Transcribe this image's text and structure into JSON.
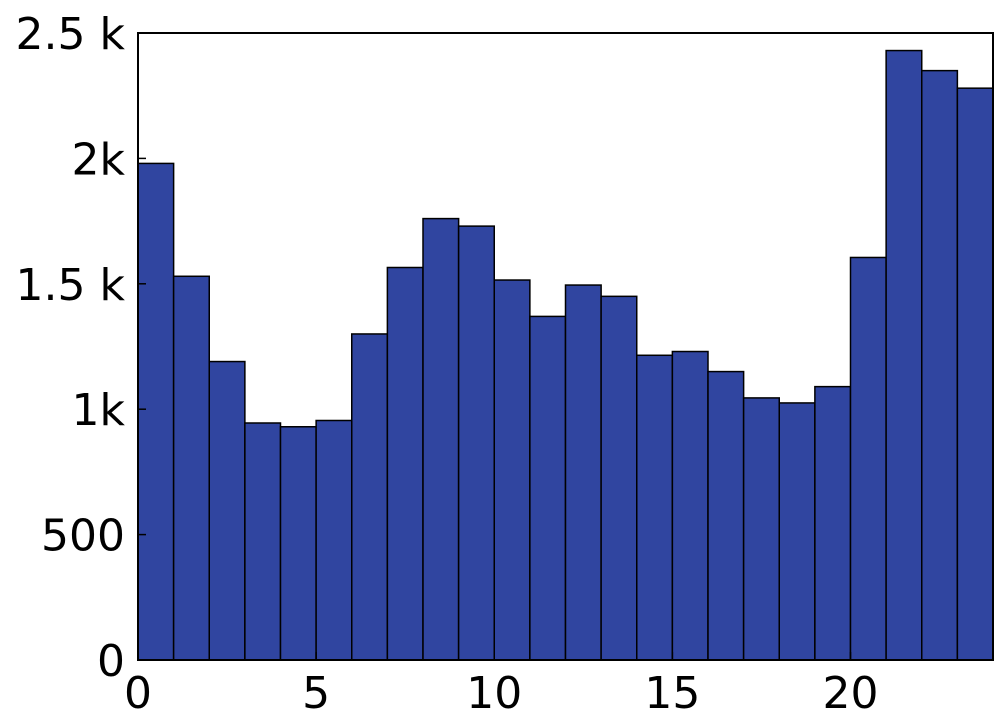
{
  "chart_data": {
    "type": "histogram",
    "bins": [
      0,
      1,
      2,
      3,
      4,
      5,
      6,
      7,
      8,
      9,
      10,
      11,
      12,
      13,
      14,
      15,
      16,
      17,
      18,
      19,
      20,
      21,
      22,
      23,
      24
    ],
    "counts": [
      1980,
      1530,
      1190,
      945,
      930,
      955,
      1300,
      1565,
      1760,
      1730,
      1515,
      1370,
      1495,
      1450,
      1215,
      1230,
      1150,
      1045,
      1025,
      1090,
      1605,
      2430,
      2350,
      2280
    ],
    "color": "#3045a0",
    "xlim": [
      0,
      24
    ],
    "xticks": [
      0,
      5,
      10,
      15,
      20
    ],
    "ylim": [
      0,
      2500
    ],
    "yticks": [
      0,
      500,
      {
        "value": 1000,
        "label": "1k"
      },
      {
        "value": 1500,
        "label": "1.5 k"
      },
      {
        "value": 2000,
        "label": "2k"
      },
      {
        "value": 2500,
        "label": "2.5 k"
      }
    ]
  }
}
